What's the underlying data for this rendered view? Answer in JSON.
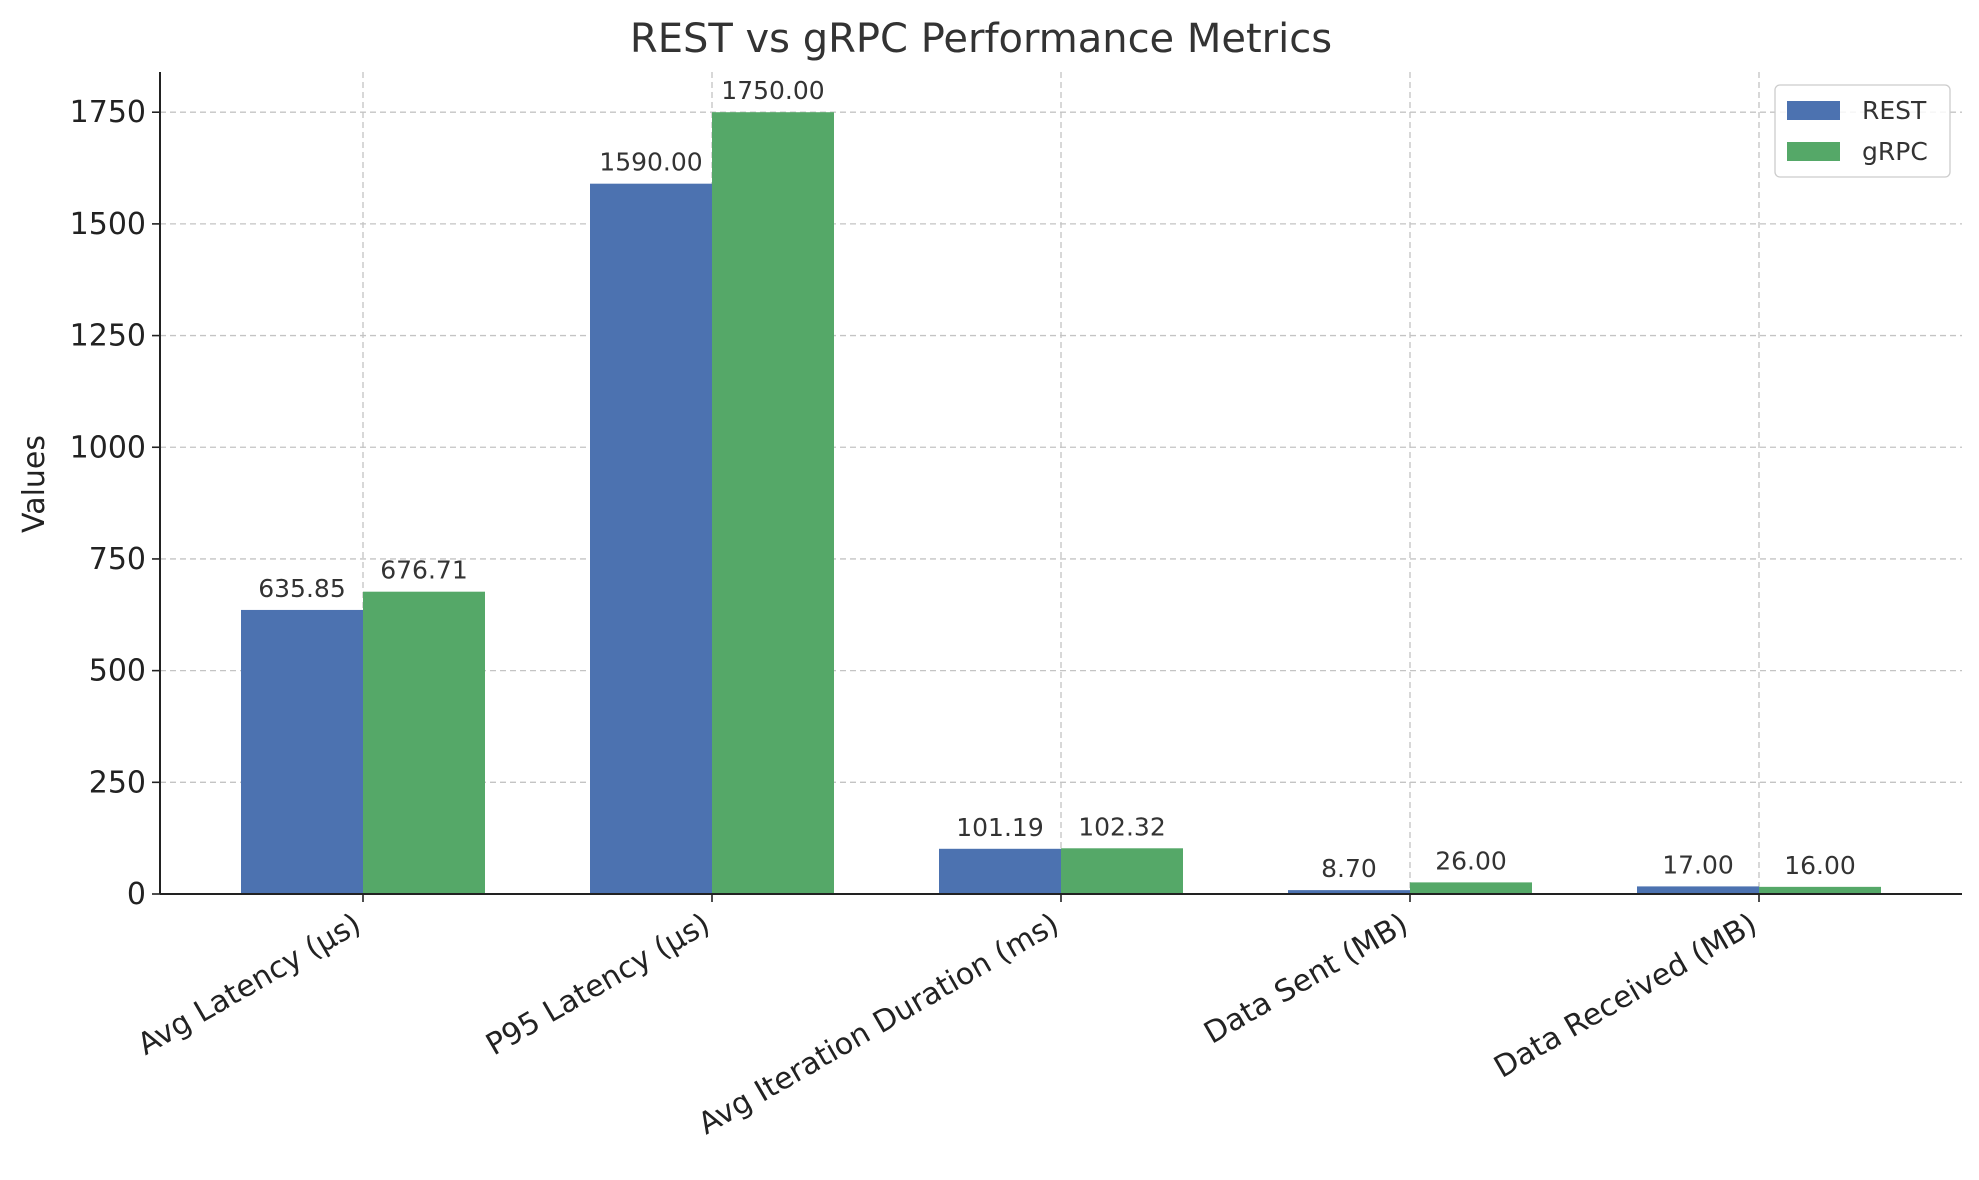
{
  "colors": {
    "REST": "#4c72b0",
    "gRPC": "#55a868"
  },
  "chart_data": {
    "type": "bar",
    "title": "REST vs gRPC Performance Metrics",
    "xlabel": "",
    "ylabel": "Values",
    "ylim": [
      0,
      1840
    ],
    "yticks": [
      0,
      250,
      500,
      750,
      1000,
      1250,
      1500,
      1750
    ],
    "grid": true,
    "legend_position": "top-right",
    "categories": [
      "Avg Latency (µs)",
      "P95 Latency (µs)",
      "Avg Iteration Duration (ms)",
      "Data Sent (MB)",
      "Data Received (MB)"
    ],
    "series": [
      {
        "name": "REST",
        "values": [
          635.85,
          1590.0,
          101.19,
          8.7,
          17.0
        ],
        "labels": [
          "635.85",
          "1590.00",
          "101.19",
          "8.70",
          "17.00"
        ]
      },
      {
        "name": "gRPC",
        "values": [
          676.71,
          1750.0,
          102.32,
          26.0,
          16.0
        ],
        "labels": [
          "676.71",
          "1750.00",
          "102.32",
          "26.00",
          "16.00"
        ]
      }
    ]
  }
}
